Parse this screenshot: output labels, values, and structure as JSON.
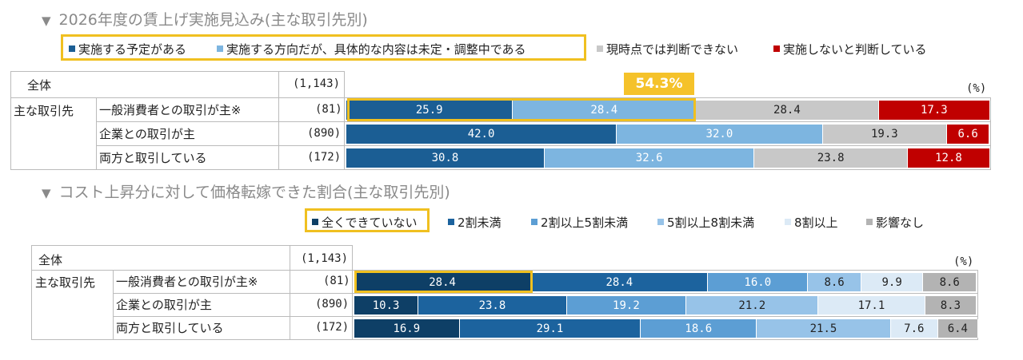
{
  "colors": {
    "c1": "#1b5e94",
    "c2": "#7db5e0",
    "c3": "#c8c8c8",
    "c4": "#c00000",
    "d0": "#0e3f66",
    "d1": "#1c639e",
    "d2": "#5c9ed4",
    "d3": "#97c3e8",
    "d4": "#dceaf6",
    "d5": "#b3b3b3",
    "highlight": "#f0c020"
  },
  "chart1": {
    "title": "2026年度の賃上げ実施見込み(主な取引先別)",
    "legend": [
      "実施する予定がある",
      "実施する方向だが、具体的な内容は未定・調整中である",
      "現時点では判断できない",
      "実施しないと判断している"
    ],
    "header_label": "全体",
    "header_n": "(1,143)",
    "group_label": "主な取引先",
    "unit": "(%)",
    "callout": "54.3%"
  },
  "chart2": {
    "title": "コスト上昇分に対して価格転嫁できた割合(主な取引先別)",
    "legend": [
      "全くできていない",
      "2割未満",
      "2割以上5割未満",
      "5割以上8割未満",
      "8割以上",
      "影響なし"
    ],
    "header_label": "全体",
    "header_n": "(1,143)",
    "group_label": "主な取引先",
    "unit": "(%)"
  },
  "chart_data": [
    {
      "type": "bar",
      "stacked": true,
      "orientation": "horizontal",
      "title": "2026年度の賃上げ実施見込み(主な取引先別)",
      "categories": [
        "一般消費者との取引が主※",
        "企業との取引が主",
        "両方と取引している"
      ],
      "n": [
        "(81)",
        "(890)",
        "(172)"
      ],
      "series": [
        {
          "name": "実施する予定がある",
          "values": [
            25.9,
            42.0,
            30.8
          ]
        },
        {
          "name": "実施する方向だが、具体的な内容は未定・調整中である",
          "values": [
            28.4,
            32.0,
            32.6
          ]
        },
        {
          "name": "現時点では判断できない",
          "values": [
            28.4,
            19.3,
            23.8
          ]
        },
        {
          "name": "実施しないと判断している",
          "values": [
            17.3,
            6.6,
            12.8
          ]
        }
      ],
      "labels": [
        [
          "25.9",
          "28.4",
          "28.4",
          "17.3"
        ],
        [
          "42.0",
          "32.0",
          "19.3",
          "6.6"
        ],
        [
          "30.8",
          "32.6",
          "23.8",
          "12.8"
        ]
      ],
      "xlim": [
        0,
        100
      ]
    },
    {
      "type": "bar",
      "stacked": true,
      "orientation": "horizontal",
      "title": "コスト上昇分に対して価格転嫁できた割合(主な取引先別)",
      "categories": [
        "一般消費者との取引が主※",
        "企業との取引が主",
        "両方と取引している"
      ],
      "n": [
        "(81)",
        "(890)",
        "(172)"
      ],
      "series": [
        {
          "name": "全くできていない",
          "values": [
            28.4,
            10.3,
            16.9
          ]
        },
        {
          "name": "2割未満",
          "values": [
            28.4,
            23.8,
            29.1
          ]
        },
        {
          "name": "2割以上5割未満",
          "values": [
            16.0,
            19.2,
            18.6
          ]
        },
        {
          "name": "5割以上8割未満",
          "values": [
            8.6,
            21.2,
            21.5
          ]
        },
        {
          "name": "8割以上",
          "values": [
            9.9,
            17.1,
            7.6
          ]
        },
        {
          "name": "影響なし",
          "values": [
            8.6,
            8.3,
            6.4
          ]
        }
      ],
      "labels": [
        [
          "28.4",
          "28.4",
          "16.0",
          "8.6",
          "9.9",
          "8.6"
        ],
        [
          "10.3",
          "23.8",
          "19.2",
          "21.2",
          "17.1",
          "8.3"
        ],
        [
          "16.9",
          "29.1",
          "18.6",
          "21.5",
          "7.6",
          "6.4"
        ]
      ],
      "xlim": [
        0,
        100
      ]
    }
  ]
}
